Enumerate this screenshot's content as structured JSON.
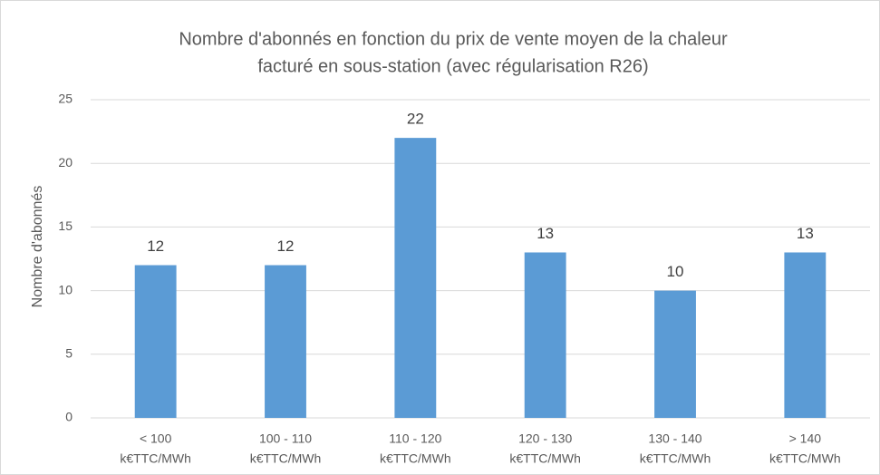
{
  "chart_data": {
    "type": "bar",
    "title": [
      "Nombre d'abonnés en fonction du prix de vente moyen de la chaleur",
      "facturé en sous-station (avec régularisation R26)"
    ],
    "y_label": "Nombre d'abonnés",
    "categories": [
      [
        "< 100",
        "k€TTC/MWh"
      ],
      [
        "100 - 110",
        "k€TTC/MWh"
      ],
      [
        "110 - 120",
        "k€TTC/MWh"
      ],
      [
        "120 - 130",
        "k€TTC/MWh"
      ],
      [
        "130 - 140",
        "k€TTC/MWh"
      ],
      [
        "> 140",
        "k€TTC/MWh"
      ]
    ],
    "values": [
      12,
      12,
      22,
      13,
      10,
      13
    ],
    "color": "#5b9bd5",
    "ylim": [
      0,
      25
    ],
    "yticks": [
      0,
      5,
      10,
      15,
      20,
      25
    ],
    "grid": true
  }
}
